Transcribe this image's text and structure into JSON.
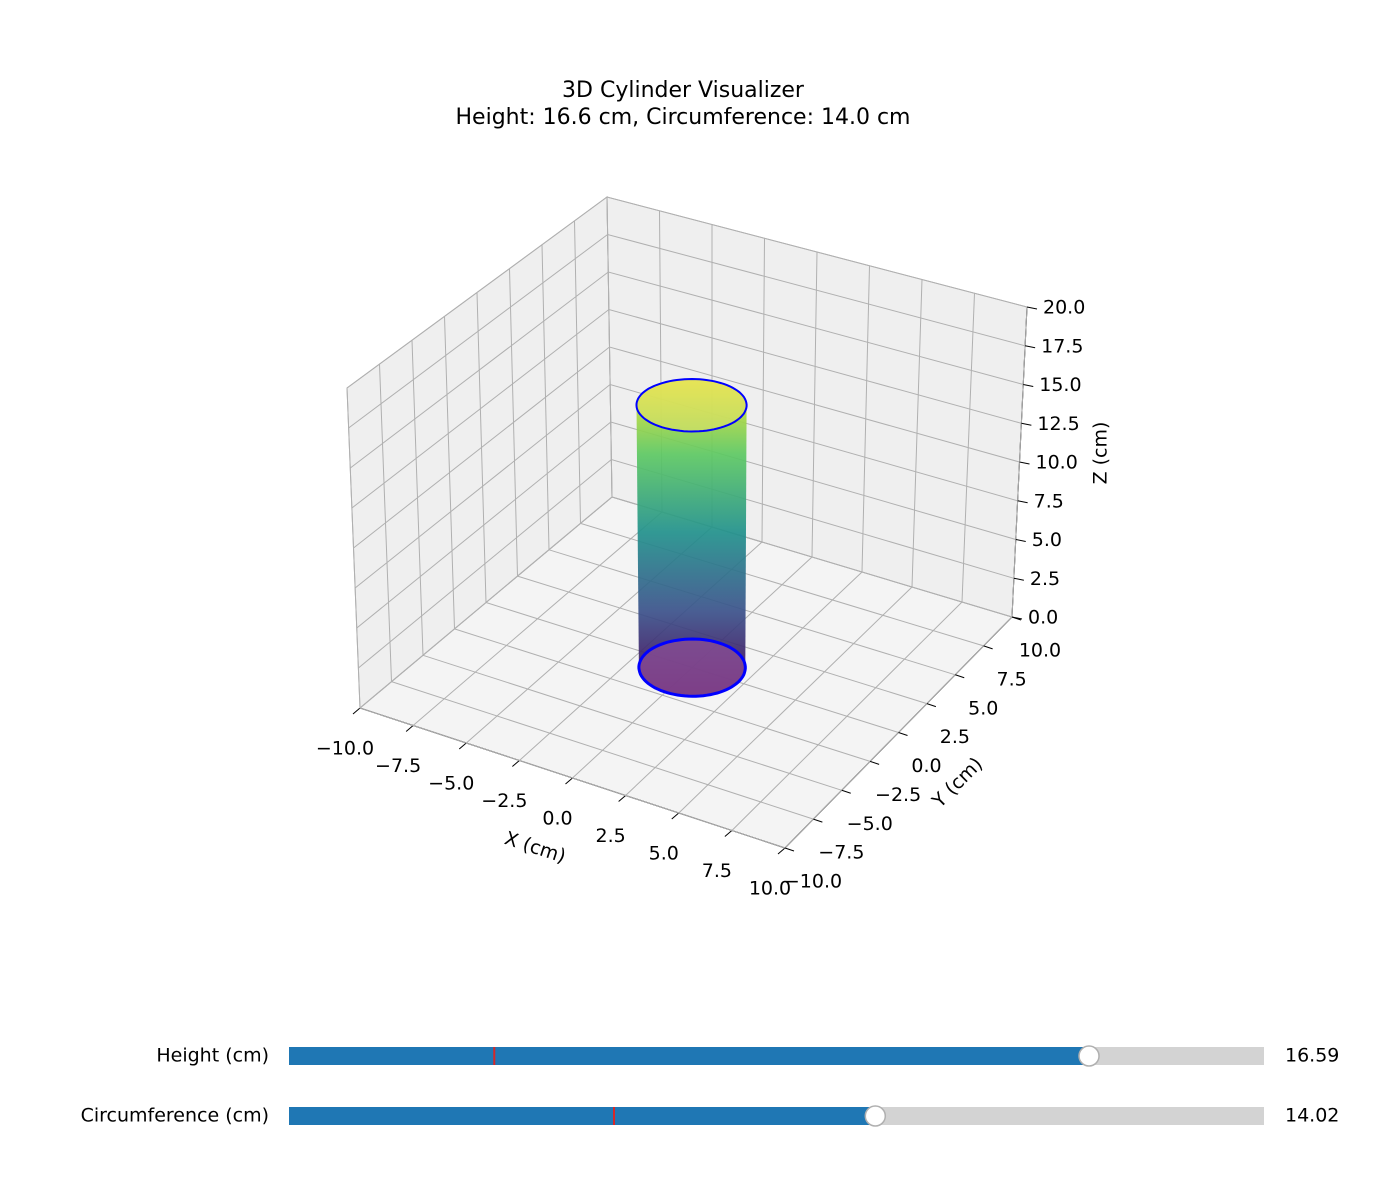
{
  "chart_data": {
    "type": "cylinder3d",
    "title": "3D Cylinder Visualizer",
    "subtitle": "Height: 16.6 cm, Circumference: 14.0 cm",
    "xlabel": "X (cm)",
    "ylabel": "Y (cm)",
    "zlabel": "Z (cm)",
    "xlim": [
      -10,
      10
    ],
    "ylim": [
      -10,
      10
    ],
    "zlim": [
      0,
      20
    ],
    "xticks": [
      {
        "value": -10,
        "label": "−10.0"
      },
      {
        "value": -7.5,
        "label": "−7.5"
      },
      {
        "value": -5,
        "label": "−5.0"
      },
      {
        "value": -2.5,
        "label": "−2.5"
      },
      {
        "value": 0,
        "label": "0.0"
      },
      2.5,
      {
        "value": 5,
        "label": "5.0"
      },
      7.5,
      {
        "value": 10,
        "label": "10.0"
      }
    ],
    "yticks": [
      {
        "value": -10,
        "label": "−10.0"
      },
      {
        "value": -7.5,
        "label": "−7.5"
      },
      {
        "value": -5,
        "label": "−5.0"
      },
      {
        "value": -2.5,
        "label": "−2.5"
      },
      {
        "value": 0,
        "label": "0.0"
      },
      2.5,
      {
        "value": 5,
        "label": "5.0"
      },
      7.5,
      {
        "value": 10,
        "label": "10.0"
      }
    ],
    "zticks": [
      {
        "value": 0,
        "label": "0.0"
      },
      2.5,
      {
        "value": 5,
        "label": "5.0"
      },
      7.5,
      {
        "value": 10,
        "label": "10.0"
      },
      12.5,
      {
        "value": 15,
        "label": "15.0"
      },
      17.5,
      {
        "value": 20,
        "label": "20.0"
      }
    ],
    "grid": true,
    "colormap": "viridis",
    "edge_color": "#0000ff"
  },
  "sliders": [
    {
      "label": "Height (cm)",
      "value": 16.59,
      "range": [
        1,
        20
      ],
      "initial": 5,
      "color": "#1f77b4"
    },
    {
      "label": "Circumference (cm)",
      "value": 14.02,
      "range": [
        5,
        20
      ],
      "initial": 10,
      "color": "#1f77b4"
    }
  ]
}
